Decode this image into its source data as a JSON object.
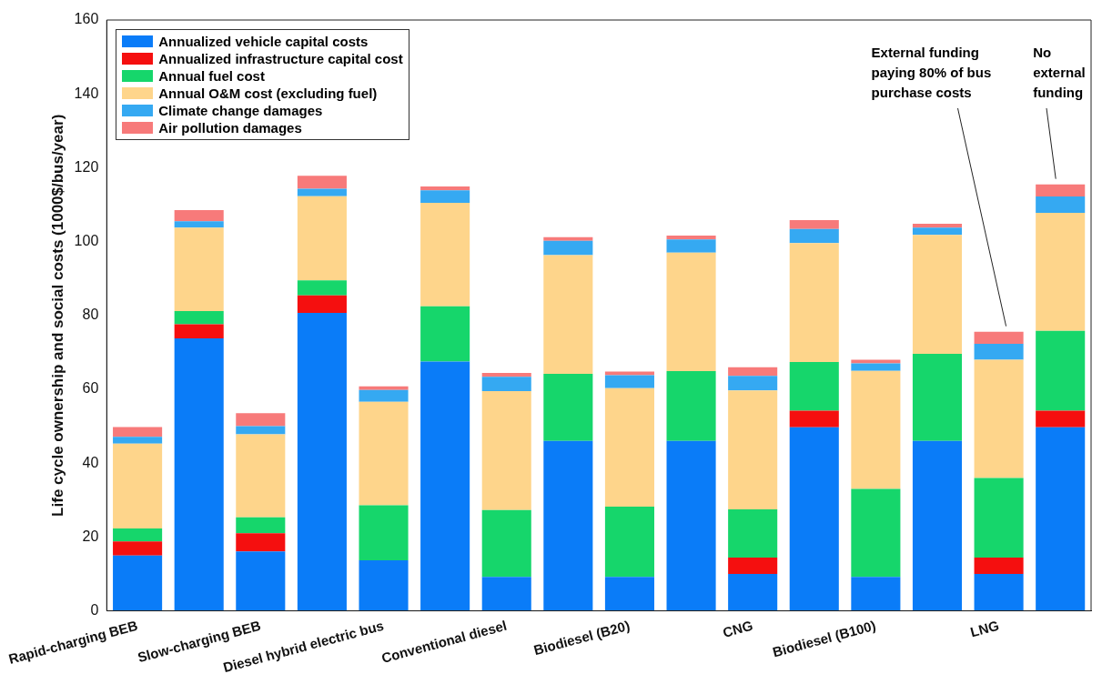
{
  "chart_data": {
    "type": "bar",
    "stacked": true,
    "ylabel": "Life cycle ownership and social costs (1000$/bus/year)",
    "categories": [
      "Rapid-charging BEB",
      null,
      "Slow-charging BEB",
      null,
      "Diesel hybrid electric bus",
      null,
      "Conventional diesel",
      null,
      "Biodiesel (B20)",
      null,
      "CNG",
      null,
      "Biodiesel (B100)",
      null,
      "LNG",
      null
    ],
    "series": [
      {
        "name": "Annualized vehicle capital costs",
        "color": "#0a7cf8",
        "values": [
          15,
          73.8,
          16.1,
          80.7,
          13.7,
          67.5,
          9.2,
          46,
          9.2,
          46,
          10,
          49.7,
          9.2,
          46,
          10,
          49.7
        ]
      },
      {
        "name": "Annualized infrastructure capital cost",
        "color": "#f50f0f",
        "values": [
          3.8,
          3.8,
          4.9,
          4.7,
          0,
          0,
          0,
          0,
          0,
          0,
          4.4,
          4.5,
          0,
          0,
          4.4,
          4.5
        ]
      },
      {
        "name": "Annual fuel cost",
        "color": "#16d66b",
        "values": [
          3.5,
          3.6,
          4.3,
          4.1,
          14.9,
          15,
          18.1,
          18.2,
          19,
          18.9,
          13.1,
          13.2,
          23.8,
          23.6,
          21.6,
          21.6
        ]
      },
      {
        "name": "Annual O&M cost (excluding fuel)",
        "color": "#fed58b",
        "values": [
          23,
          22.6,
          22.5,
          22.8,
          28,
          28,
          32.2,
          32.1,
          32.1,
          32.1,
          32.2,
          32.2,
          32,
          32.2,
          32,
          32
        ]
      },
      {
        "name": "Climate change damages",
        "color": "#35a9f2",
        "values": [
          1.8,
          1.7,
          2.2,
          2,
          3.2,
          3.4,
          3.9,
          3.9,
          3.5,
          3.6,
          3.9,
          3.8,
          2,
          2,
          4.3,
          4.4
        ]
      },
      {
        "name": "Air pollution damages",
        "color": "#f77a7a",
        "values": [
          2.7,
          3,
          3.5,
          3.5,
          1,
          1,
          1,
          1,
          1,
          1,
          2.4,
          2.4,
          1,
          1,
          3.3,
          3.3
        ]
      }
    ],
    "ylim": [
      0,
      160
    ],
    "yticks": [
      0,
      20,
      40,
      60,
      80,
      100,
      120,
      140,
      160
    ],
    "grid": false,
    "legend": "top left",
    "annotations": [
      "External funding paying 80% of bus purchase costs",
      "No external funding"
    ]
  }
}
